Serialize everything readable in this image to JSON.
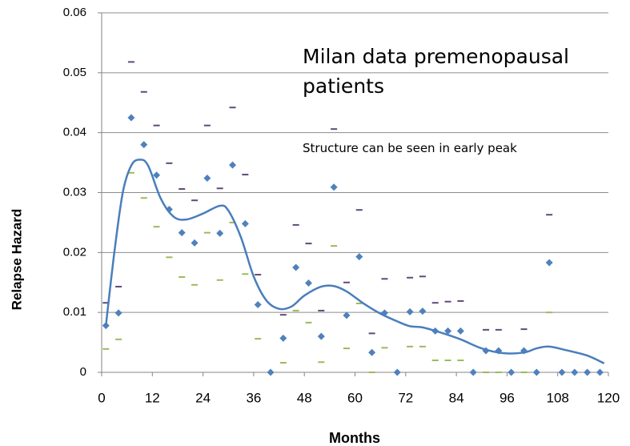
{
  "chart_data": {
    "type": "scatter",
    "title": "Milan data premenopausal patients",
    "annotation": "Structure can be seen in early peak",
    "xlabel": "Months",
    "ylabel": "Relapse Hazard",
    "xlim": [
      0,
      120
    ],
    "xticks": [
      0,
      12,
      24,
      36,
      48,
      60,
      72,
      84,
      96,
      108,
      120
    ],
    "ylim": [
      0,
      0.06
    ],
    "yticks": [
      0,
      0.01,
      0.02,
      0.03,
      0.04,
      0.05,
      0.06
    ],
    "grid": true,
    "x": [
      1,
      4,
      7,
      10,
      13,
      16,
      19,
      22,
      25,
      28,
      31,
      34,
      37,
      40,
      43,
      46,
      49,
      52,
      55,
      58,
      61,
      64,
      67,
      70,
      73,
      76,
      79,
      82,
      85,
      88,
      91,
      94,
      97,
      100,
      103,
      106,
      109,
      112,
      115,
      118
    ],
    "series": [
      {
        "marker": "diamond",
        "color": "#4f81bd",
        "values": [
          0.0078,
          0.0099,
          0.0425,
          0.038,
          0.0329,
          0.0272,
          0.0233,
          0.0216,
          0.0324,
          0.0232,
          0.0346,
          0.0248,
          0.0113,
          0,
          0.0057,
          0.0175,
          0.0149,
          0.006,
          0.0309,
          0.0095,
          0.0193,
          0.0033,
          0.0099,
          0,
          0.0101,
          0.0102,
          0.0069,
          0.0069,
          0.0069,
          0,
          0.0036,
          0.0036,
          0,
          0.0036,
          0,
          0.0183,
          0,
          0,
          0,
          0
        ]
      },
      {
        "marker": "dash",
        "color": "#604a7b",
        "values": [
          0.0116,
          0.0143,
          0.0518,
          0.0468,
          0.0412,
          0.0349,
          0.0306,
          0.0287,
          0.0412,
          0.0307,
          0.0442,
          0.033,
          0.0163,
          null,
          0.0096,
          0.0246,
          0.0215,
          0.0103,
          0.0406,
          0.015,
          0.0271,
          0.0065,
          0.0156,
          null,
          0.0158,
          0.016,
          0.0116,
          0.0118,
          0.0119,
          null,
          0.0071,
          0.0071,
          null,
          0.0072,
          null,
          0.0263,
          null,
          null,
          null,
          null
        ]
      },
      {
        "marker": "dash",
        "color": "#9bbb59",
        "values": [
          0.0039,
          0.0055,
          0.0333,
          0.0291,
          0.0243,
          0.0192,
          0.0159,
          0.0146,
          0.0233,
          0.0154,
          0.025,
          0.0164,
          0.0056,
          null,
          0.0016,
          0.0103,
          0.0083,
          0.0017,
          0.0211,
          0.004,
          0.0115,
          0,
          0.0041,
          null,
          0.0043,
          0.0043,
          0.002,
          0.002,
          0.002,
          null,
          0,
          0,
          null,
          0,
          null,
          0.01,
          null,
          null,
          null,
          null
        ]
      },
      {
        "marker": "line",
        "color": "#4a7ebb",
        "x": [
          1,
          3,
          5,
          7,
          9,
          11,
          14,
          17,
          20,
          24,
          28,
          30,
          33,
          36,
          39,
          42,
          45,
          48,
          52,
          55,
          58,
          62,
          66,
          70,
          73,
          76,
          80,
          85,
          90,
          95,
          100,
          103,
          106,
          110,
          115,
          119
        ],
        "values": [
          0.0078,
          0.02,
          0.03,
          0.0345,
          0.0355,
          0.0345,
          0.029,
          0.026,
          0.0255,
          0.0265,
          0.0278,
          0.027,
          0.0225,
          0.016,
          0.012,
          0.0106,
          0.011,
          0.0128,
          0.0143,
          0.0144,
          0.0135,
          0.0115,
          0.0098,
          0.0085,
          0.0077,
          0.0075,
          0.0067,
          0.0055,
          0.004,
          0.0032,
          0.0033,
          0.004,
          0.0043,
          0.0037,
          0.0028,
          0.0015
        ]
      }
    ]
  }
}
